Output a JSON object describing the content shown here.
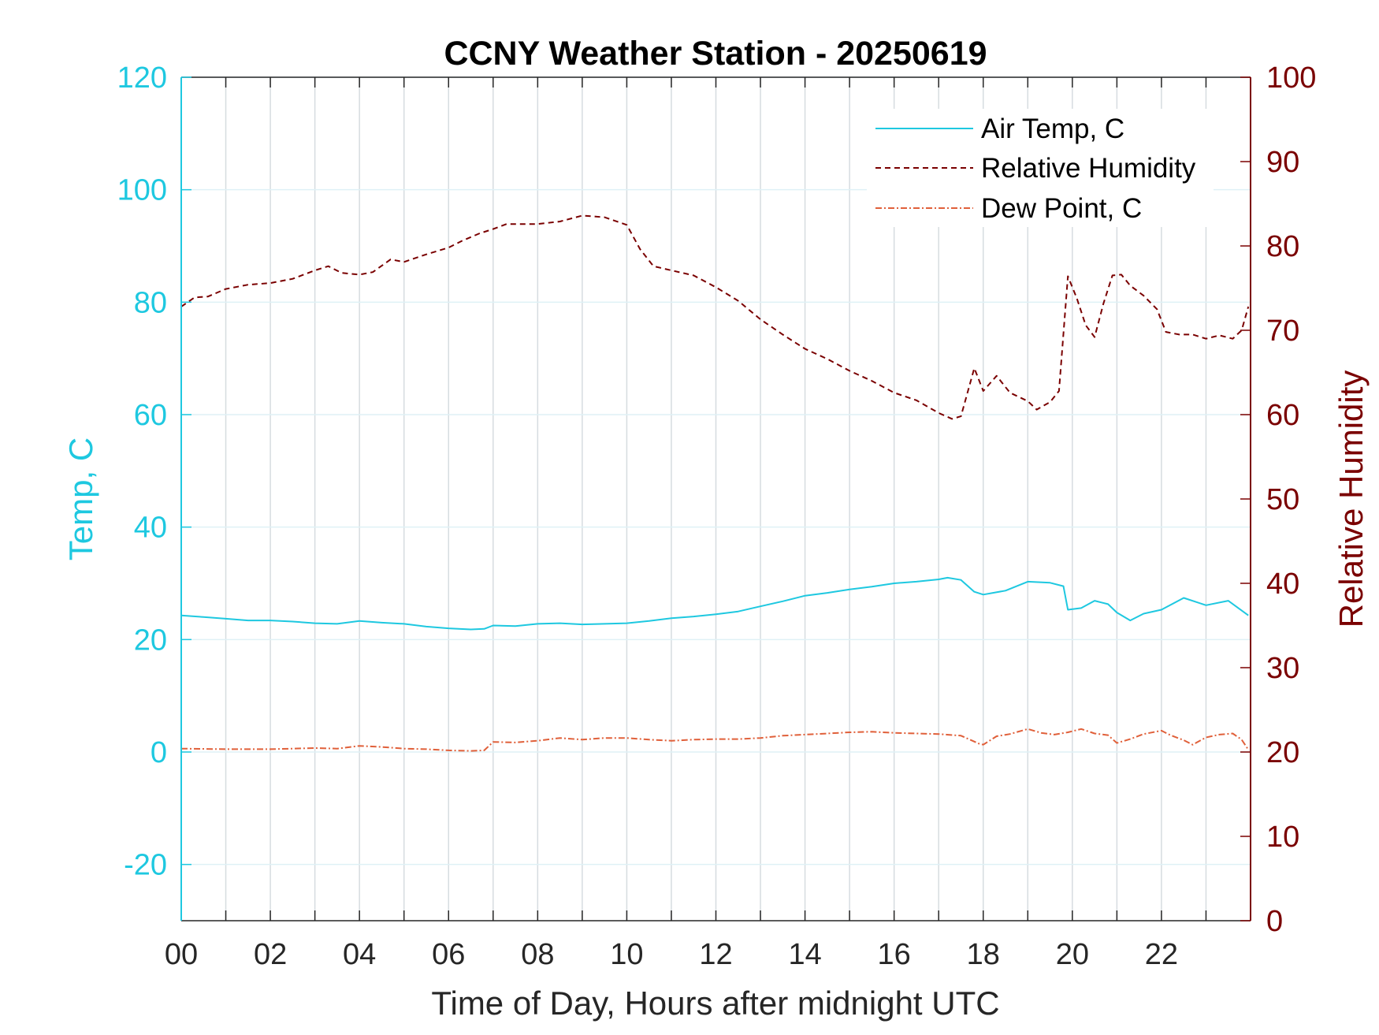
{
  "chart_data": {
    "type": "line",
    "title": "CCNY Weather Station - 20250619",
    "xlabel": "Time of Day, Hours after midnight UTC",
    "ylabel_left": "Temp, C",
    "ylabel_right": "Relative Humidity",
    "xlim": [
      0,
      24
    ],
    "ylim_left": [
      -30,
      120
    ],
    "ylim_right": [
      0,
      100
    ],
    "x_ticks": [
      0,
      2,
      4,
      6,
      8,
      10,
      12,
      14,
      16,
      18,
      20,
      22
    ],
    "x_tick_labels": [
      "00",
      "02",
      "04",
      "06",
      "08",
      "10",
      "12",
      "14",
      "16",
      "18",
      "20",
      "22"
    ],
    "y_ticks_left": [
      -20,
      0,
      20,
      40,
      60,
      80,
      100,
      120
    ],
    "y_ticks_right": [
      0,
      10,
      20,
      30,
      40,
      50,
      60,
      70,
      80,
      90,
      100
    ],
    "grid": true,
    "legend_position": "top-right",
    "colors": {
      "left_axis": "#1ec8e0",
      "right_axis": "#7a0000",
      "air_temp": "#1ec8e0",
      "relative_humidity": "#7a0000",
      "dew_point": "#e0603a",
      "grid": "#d6dce0"
    },
    "series": [
      {
        "name": "Air Temp, C",
        "axis": "left",
        "style": "solid",
        "x": [
          0,
          0.5,
          1,
          1.5,
          2,
          2.5,
          3,
          3.5,
          4,
          4.5,
          5,
          5.5,
          6,
          6.5,
          6.8,
          7,
          7.5,
          8,
          8.5,
          9,
          9.5,
          10,
          10.5,
          11,
          11.5,
          12,
          12.5,
          13,
          13.5,
          14,
          14.5,
          15,
          15.5,
          16,
          16.5,
          17,
          17.2,
          17.5,
          17.8,
          18,
          18.5,
          19,
          19.5,
          19.8,
          19.9,
          20.2,
          20.5,
          20.8,
          21,
          21.3,
          21.6,
          22,
          22.5,
          23,
          23.5,
          23.95
        ],
        "y": [
          24.3,
          24,
          23.7,
          23.4,
          23.4,
          23.2,
          22.9,
          22.8,
          23.3,
          23,
          22.8,
          22.3,
          22,
          21.8,
          21.9,
          22.5,
          22.4,
          22.8,
          22.9,
          22.7,
          22.8,
          22.9,
          23.3,
          23.8,
          24.1,
          24.5,
          25,
          25.9,
          26.8,
          27.8,
          28.3,
          28.9,
          29.4,
          30,
          30.3,
          30.7,
          31,
          30.6,
          28.5,
          28,
          28.7,
          30.3,
          30.1,
          29.5,
          25.3,
          25.6,
          26.9,
          26.3,
          24.8,
          23.4,
          24.6,
          25.3,
          27.4,
          26.1,
          26.9,
          24.3
        ]
      },
      {
        "name": "Relative Humidity",
        "axis": "right",
        "style": "dashed",
        "x": [
          0,
          0.3,
          0.6,
          1,
          1.5,
          2,
          2.5,
          3,
          3.3,
          3.6,
          4,
          4.3,
          4.7,
          5,
          5.5,
          6,
          6.3,
          6.7,
          7,
          7.3,
          7.7,
          8,
          8.5,
          9,
          9.5,
          10,
          10.3,
          10.6,
          11,
          11.5,
          12,
          12.5,
          13,
          13.5,
          14,
          14.5,
          15,
          15.5,
          16,
          16.5,
          17,
          17.3,
          17.5,
          17.8,
          18,
          18.3,
          18.6,
          19,
          19.2,
          19.5,
          19.7,
          19.9,
          20.1,
          20.3,
          20.5,
          20.7,
          20.9,
          21.1,
          21.3,
          21.6,
          21.9,
          22.1,
          22.4,
          22.7,
          23,
          23.3,
          23.6,
          23.8,
          23.95
        ],
        "y": [
          72.8,
          73.9,
          74,
          74.9,
          75.4,
          75.6,
          76.1,
          77.1,
          77.6,
          76.8,
          76.6,
          76.9,
          78.4,
          78.1,
          79,
          79.8,
          80.6,
          81.5,
          82,
          82.6,
          82.6,
          82.6,
          82.9,
          83.6,
          83.4,
          82.5,
          79.6,
          77.6,
          77.1,
          76.5,
          75.1,
          73.5,
          71.3,
          69.5,
          67.8,
          66.6,
          65.2,
          64,
          62.6,
          61.7,
          60.2,
          59.5,
          59.8,
          65.5,
          62.8,
          64.6,
          62.6,
          61.6,
          60.6,
          61.5,
          62.8,
          76.4,
          73.8,
          70.6,
          69.2,
          73.2,
          76.5,
          76.6,
          75.3,
          74.1,
          72.5,
          69.8,
          69.5,
          69.5,
          69,
          69.4,
          69,
          70,
          72.8
        ]
      },
      {
        "name": "Dew Point, C",
        "axis": "left",
        "style": "dashdot",
        "x": [
          0,
          1,
          2,
          3,
          3.5,
          4,
          4.5,
          5,
          5.5,
          6,
          6.5,
          6.8,
          7,
          7.5,
          8,
          8.5,
          9,
          9.5,
          10,
          10.5,
          11,
          11.5,
          12,
          12.5,
          13,
          13.5,
          14,
          14.5,
          15,
          15.5,
          16,
          16.5,
          17,
          17.5,
          17.9,
          18,
          18.3,
          18.6,
          19,
          19.3,
          19.6,
          19.9,
          20.2,
          20.5,
          20.8,
          21,
          21.3,
          21.6,
          22,
          22.2,
          22.5,
          22.7,
          23,
          23.3,
          23.6,
          23.8,
          23.95
        ],
        "y": [
          0.6,
          0.5,
          0.5,
          0.7,
          0.6,
          1.1,
          0.9,
          0.6,
          0.5,
          0.3,
          0.2,
          0.3,
          1.8,
          1.7,
          2,
          2.5,
          2.2,
          2.5,
          2.5,
          2.2,
          2,
          2.2,
          2.3,
          2.3,
          2.5,
          2.9,
          3.1,
          3.3,
          3.5,
          3.6,
          3.4,
          3.3,
          3.2,
          2.9,
          1.5,
          1.3,
          2.8,
          3.2,
          4.1,
          3.4,
          3.1,
          3.5,
          4.1,
          3.3,
          3,
          1.6,
          2.3,
          3.2,
          3.8,
          3,
          2.1,
          1.3,
          2.6,
          3.1,
          3.3,
          2.2,
          0.4
        ]
      }
    ]
  }
}
